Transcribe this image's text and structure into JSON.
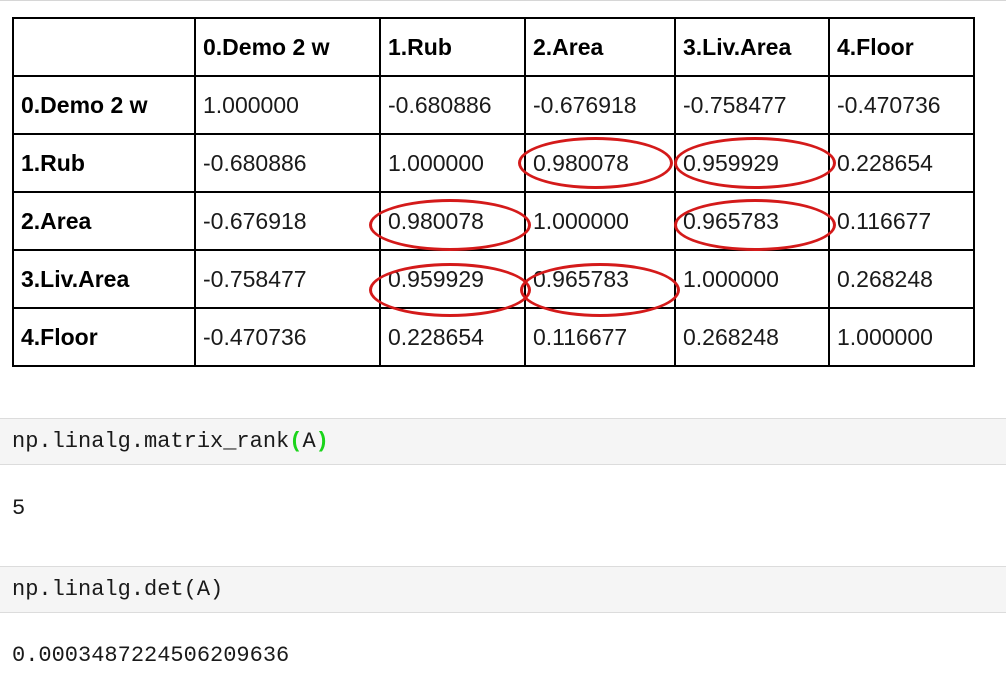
{
  "dataframe": {
    "corner": "",
    "columns": [
      "0.Demo 2 w",
      "1.Rub",
      "2.Area",
      "3.Liv.Area",
      "4.Floor"
    ],
    "rows": [
      {
        "label": "0.Demo 2 w",
        "values": [
          "1.000000",
          "-0.680886",
          "-0.676918",
          "-0.758477",
          "-0.470736"
        ]
      },
      {
        "label": "1.Rub",
        "values": [
          "-0.680886",
          "1.000000",
          "0.980078",
          "0.959929",
          "0.228654"
        ]
      },
      {
        "label": "2.Area",
        "values": [
          "-0.676918",
          "0.980078",
          "1.000000",
          "0.965783",
          "0.116677"
        ]
      },
      {
        "label": "3.Liv.Area",
        "values": [
          "-0.758477",
          "0.959929",
          "0.965783",
          "1.000000",
          "0.268248"
        ]
      },
      {
        "label": "4.Floor",
        "values": [
          "-0.470736",
          "0.228654",
          "0.116677",
          "0.268248",
          "1.000000"
        ]
      }
    ],
    "highlight_color": "#d41a1a",
    "highlighted_cells": [
      {
        "row": "1.Rub",
        "column": "2.Area"
      },
      {
        "row": "1.Rub",
        "column": "3.Liv.Area"
      },
      {
        "row": "2.Area",
        "column": "1.Rub"
      },
      {
        "row": "2.Area",
        "column": "3.Liv.Area"
      },
      {
        "row": "3.Liv.Area",
        "column": "1.Rub"
      },
      {
        "row": "3.Liv.Area",
        "column": "2.Area"
      }
    ]
  },
  "cells": [
    {
      "code_before": "np.linalg.matrix_rank",
      "code_paren_open": "(",
      "code_arg": "A",
      "code_paren_close": ")",
      "output": "5"
    },
    {
      "code": "np.linalg.det(A)",
      "output": "0.0003487224506209636"
    }
  ],
  "colors": {
    "paren_match": "#1ad41a",
    "cell_background": "#f5f5f5"
  }
}
